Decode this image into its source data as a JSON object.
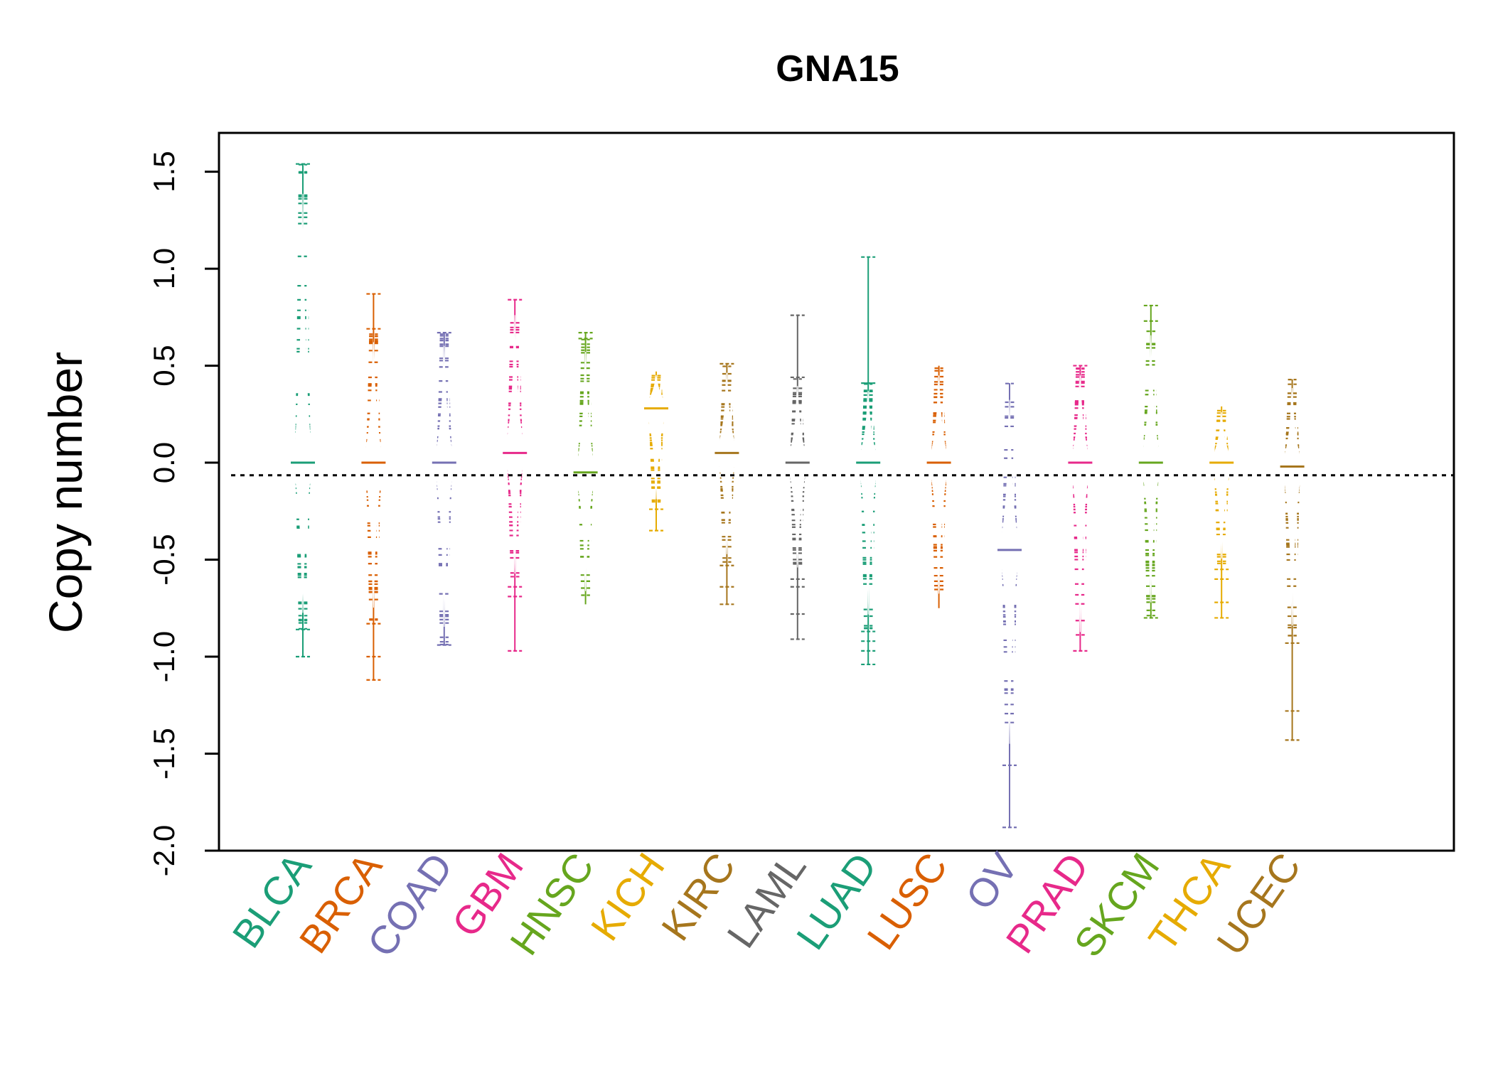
{
  "chart_data": {
    "type": "beanplot",
    "title": "GNA15",
    "xlabel": "",
    "ylabel": "Copy number",
    "ylim": [
      -2.0,
      1.7
    ],
    "yticks": [
      -2.0,
      -1.5,
      -1.0,
      -0.5,
      0.0,
      0.5,
      1.0,
      1.5
    ],
    "ytick_labels": [
      "-2.0",
      "-1.5",
      "-1.0",
      "-0.5",
      "0.0",
      "0.5",
      "1.0",
      "1.5"
    ],
    "reference_line": -0.065,
    "grid": false,
    "legend": "none",
    "categories": [
      "BLCA",
      "BRCA",
      "COAD",
      "GBM",
      "HNSC",
      "KICH",
      "KIRC",
      "LAML",
      "LUAD",
      "LUSC",
      "OV",
      "PRAD",
      "SKCM",
      "THCA",
      "UCEC"
    ],
    "colors": [
      "#1B9E77",
      "#D95F02",
      "#7570B3",
      "#E7298A",
      "#66A61E",
      "#E6AB02",
      "#A6761D",
      "#666666",
      "#1B9E77",
      "#D95F02",
      "#7570B3",
      "#E7298A",
      "#66A61E",
      "#E6AB02",
      "#A6761D"
    ],
    "series": [
      {
        "category": "BLCA",
        "median": 0.0,
        "min": -1.0,
        "max": 1.54,
        "outliers": [
          1.54,
          -0.86,
          -1.0
        ]
      },
      {
        "category": "BRCA",
        "median": 0.0,
        "min": -1.12,
        "max": 0.87,
        "outliers": [
          0.87,
          0.69,
          -0.83,
          -1.0,
          -1.12
        ]
      },
      {
        "category": "COAD",
        "median": 0.0,
        "min": -0.94,
        "max": 0.67,
        "outliers": [
          0.67,
          -0.94
        ]
      },
      {
        "category": "GBM",
        "median": 0.05,
        "min": -0.97,
        "max": 0.84,
        "outliers": [
          0.84,
          -0.64,
          -0.69,
          -0.97
        ]
      },
      {
        "category": "HNSC",
        "median": -0.05,
        "min": -0.73,
        "max": 0.67,
        "outliers": [
          0.67,
          0.64
        ]
      },
      {
        "category": "KICH",
        "median": 0.28,
        "min": -0.35,
        "max": 0.47,
        "outliers": [
          -0.24,
          -0.35
        ]
      },
      {
        "category": "KIRC",
        "median": 0.05,
        "min": -0.73,
        "max": 0.51,
        "outliers": [
          0.51,
          -0.53,
          -0.64,
          -0.73
        ]
      },
      {
        "category": "LAML",
        "median": 0.0,
        "min": -0.91,
        "max": 0.76,
        "outliers": [
          0.76,
          0.44,
          -0.6,
          -0.64,
          -0.78,
          -0.91
        ]
      },
      {
        "category": "LUAD",
        "median": 0.0,
        "min": -1.04,
        "max": 1.06,
        "outliers": [
          1.06,
          0.41,
          -0.87,
          -0.92,
          -0.97,
          -1.04
        ]
      },
      {
        "category": "LUSC",
        "median": 0.0,
        "min": -0.75,
        "max": 0.5,
        "outliers": []
      },
      {
        "category": "OV",
        "median": -0.45,
        "min": -1.88,
        "max": 0.41,
        "outliers": [
          -1.56,
          -1.88
        ]
      },
      {
        "category": "PRAD",
        "median": 0.0,
        "min": -0.97,
        "max": 0.5,
        "outliers": [
          0.5,
          -0.97
        ]
      },
      {
        "category": "SKCM",
        "median": 0.0,
        "min": -0.8,
        "max": 0.81,
        "outliers": [
          0.81,
          0.73,
          -0.8
        ]
      },
      {
        "category": "THCA",
        "median": 0.0,
        "min": -0.8,
        "max": 0.29,
        "outliers": [
          -0.55,
          -0.6,
          -0.72,
          -0.8
        ]
      },
      {
        "category": "UCEC",
        "median": -0.02,
        "min": -1.43,
        "max": 0.43,
        "outliers": [
          -0.93,
          -1.28,
          -1.43
        ]
      }
    ]
  }
}
